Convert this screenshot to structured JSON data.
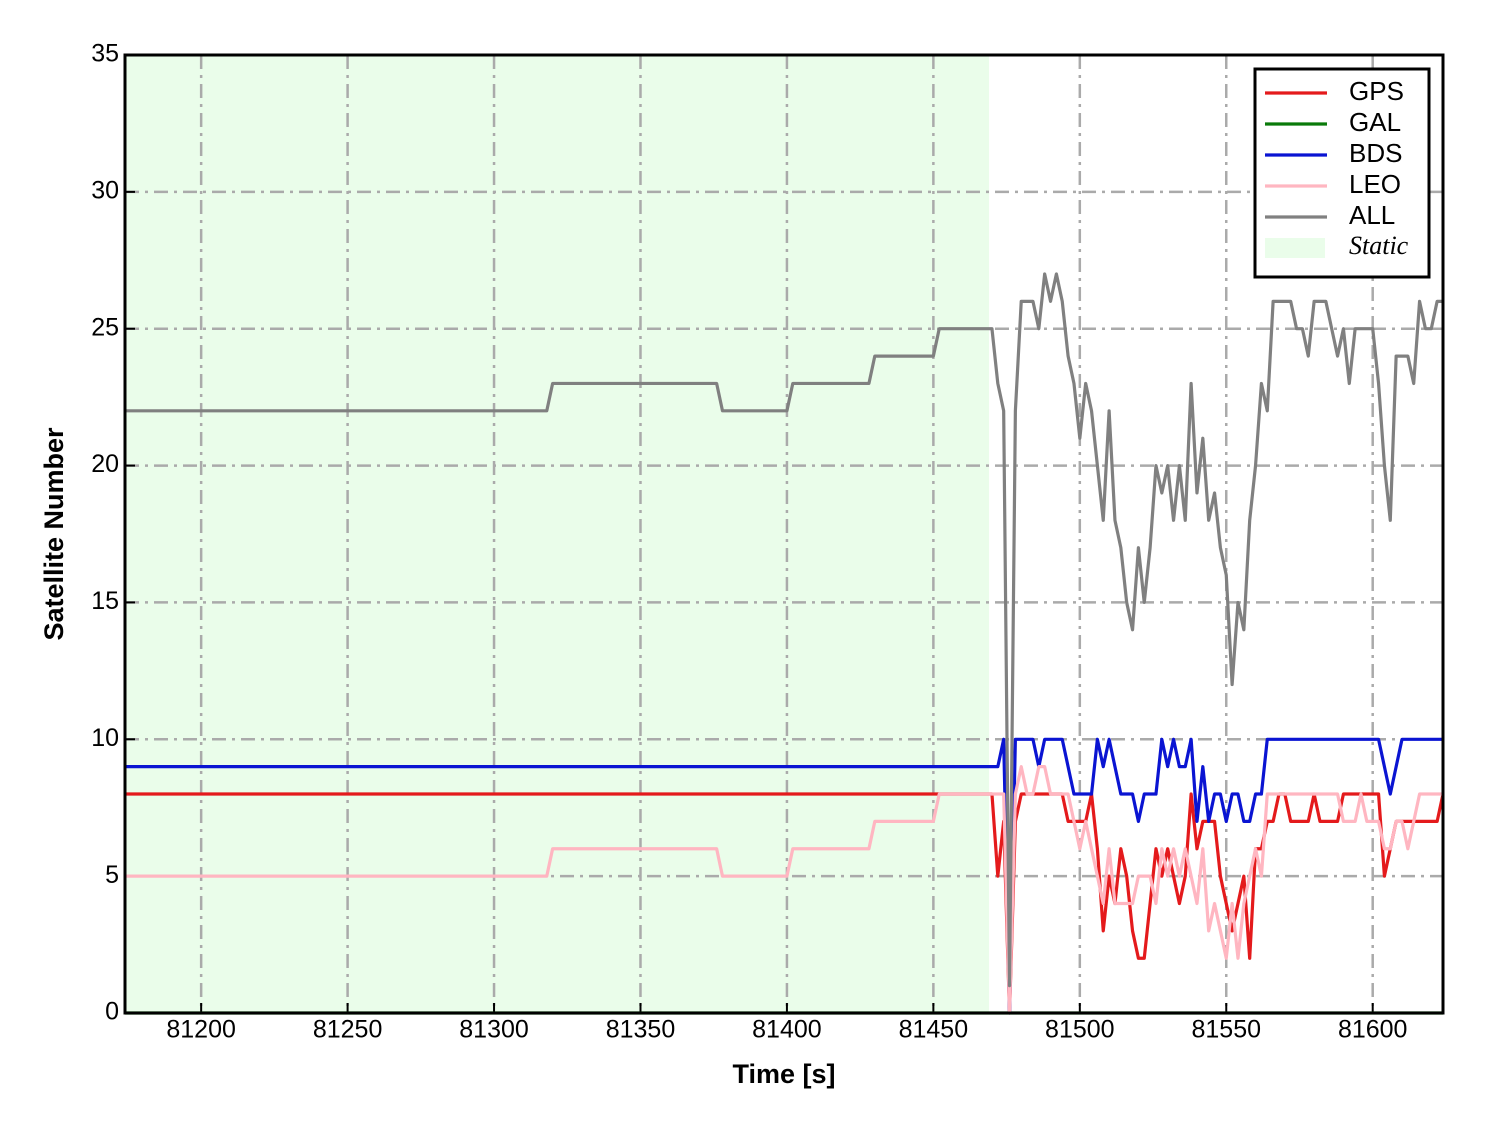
{
  "chart_data": {
    "type": "line",
    "xlabel": "Time [s]",
    "ylabel": "Satellite Number",
    "xlim": [
      81174,
      81624
    ],
    "ylim": [
      0,
      35
    ],
    "xticks": [
      81200,
      81250,
      81300,
      81350,
      81400,
      81450,
      81500,
      81550,
      81600
    ],
    "yticks": [
      0,
      5,
      10,
      15,
      20,
      25,
      30,
      35
    ],
    "grid": true,
    "legend": "upper right",
    "shaded_region": {
      "label": "Static",
      "x": [
        81174,
        81469
      ],
      "color": "#eafdea"
    },
    "x": [
      81174,
      81318,
      81320,
      81376,
      81378,
      81400,
      81402,
      81428,
      81430,
      81450,
      81452,
      81468,
      81470,
      81472,
      81474,
      81476,
      81478,
      81480,
      81482,
      81484,
      81486,
      81488,
      81490,
      81492,
      81494,
      81496,
      81498,
      81500,
      81502,
      81504,
      81506,
      81508,
      81510,
      81512,
      81514,
      81516,
      81518,
      81520,
      81522,
      81524,
      81526,
      81528,
      81530,
      81532,
      81534,
      81536,
      81538,
      81540,
      81542,
      81544,
      81546,
      81548,
      81550,
      81552,
      81554,
      81556,
      81558,
      81560,
      81562,
      81564,
      81566,
      81568,
      81570,
      81572,
      81574,
      81576,
      81578,
      81580,
      81582,
      81584,
      81586,
      81588,
      81590,
      81592,
      81594,
      81596,
      81598,
      81600,
      81602,
      81604,
      81606,
      81608,
      81610,
      81612,
      81614,
      81616,
      81618,
      81620,
      81622,
      81624
    ],
    "series": [
      {
        "name": "GPS",
        "color": "#e41a1c",
        "values": [
          8,
          8,
          8,
          8,
          8,
          8,
          8,
          8,
          8,
          8,
          8,
          8,
          8,
          5,
          7,
          0,
          7,
          8,
          8,
          8,
          8,
          8,
          8,
          8,
          8,
          7,
          7,
          7,
          7,
          8,
          6,
          3,
          5,
          4,
          6,
          5,
          3,
          2,
          2,
          4,
          6,
          5,
          6,
          5,
          4,
          5,
          8,
          6,
          7,
          7,
          7,
          5,
          4,
          3,
          4,
          5,
          2,
          6,
          6,
          7,
          7,
          8,
          8,
          7,
          7,
          7,
          7,
          8,
          7,
          7,
          7,
          7,
          8,
          8,
          8,
          8,
          8,
          8,
          8,
          5,
          6,
          7,
          7,
          7,
          7,
          7,
          7,
          7,
          7,
          8
        ]
      },
      {
        "name": "GAL",
        "color": "#0a7a0a",
        "values": [
          0,
          0,
          0,
          0,
          0,
          0,
          0,
          0,
          0,
          0,
          0,
          0,
          0,
          0,
          0,
          0,
          0,
          0,
          0,
          0,
          0,
          0,
          0,
          0,
          0,
          0,
          0,
          0,
          0,
          0,
          0,
          0,
          0,
          0,
          0,
          0,
          0,
          0,
          0,
          0,
          0,
          0,
          0,
          0,
          0,
          0,
          0,
          0,
          0,
          0,
          0,
          0,
          0,
          0,
          0,
          0,
          0,
          0,
          0,
          0,
          0,
          0,
          0,
          0,
          0,
          0,
          0,
          0,
          0,
          0,
          0,
          0,
          0,
          0,
          0,
          0,
          0,
          0,
          0,
          0,
          0,
          0,
          0,
          0,
          0,
          0,
          0,
          0,
          0,
          0
        ]
      },
      {
        "name": "BDS",
        "color": "#0a14d2",
        "values": [
          9,
          9,
          9,
          9,
          9,
          9,
          9,
          9,
          9,
          9,
          9,
          9,
          9,
          9,
          10,
          0,
          10,
          10,
          10,
          10,
          9,
          10,
          10,
          10,
          10,
          9,
          8,
          8,
          8,
          8,
          10,
          9,
          10,
          9,
          8,
          8,
          8,
          7,
          8,
          8,
          8,
          10,
          9,
          10,
          9,
          9,
          10,
          7,
          9,
          7,
          8,
          8,
          7,
          8,
          8,
          7,
          7,
          8,
          8,
          10,
          10,
          10,
          10,
          10,
          10,
          10,
          10,
          10,
          10,
          10,
          10,
          10,
          10,
          10,
          10,
          10,
          10,
          10,
          10,
          9,
          8,
          9,
          10,
          10,
          10,
          10,
          10,
          10,
          10,
          10
        ]
      },
      {
        "name": "LEO",
        "color": "#ffb6c1",
        "values": [
          5,
          5,
          6,
          6,
          5,
          5,
          6,
          6,
          7,
          7,
          8,
          8,
          8,
          8,
          8,
          0,
          8,
          9,
          8,
          8,
          9,
          9,
          8,
          8,
          8,
          8,
          7,
          6,
          7,
          6,
          5,
          4,
          6,
          4,
          4,
          4,
          4,
          5,
          5,
          5,
          4,
          6,
          5,
          6,
          5,
          6,
          5,
          4,
          6,
          3,
          4,
          3,
          2,
          4,
          2,
          4,
          5,
          6,
          5,
          8,
          8,
          8,
          8,
          8,
          8,
          8,
          8,
          8,
          8,
          8,
          8,
          8,
          7,
          7,
          7,
          8,
          7,
          7,
          7,
          6,
          6,
          7,
          7,
          6,
          7,
          8,
          8,
          8,
          8,
          8
        ]
      },
      {
        "name": "ALL",
        "color": "#808080",
        "values": [
          22,
          22,
          23,
          23,
          22,
          22,
          23,
          23,
          24,
          24,
          25,
          25,
          25,
          23,
          22,
          1,
          22,
          26,
          26,
          26,
          25,
          27,
          26,
          27,
          26,
          24,
          23,
          21,
          23,
          22,
          20,
          18,
          22,
          18,
          17,
          15,
          14,
          17,
          15,
          17,
          20,
          19,
          20,
          18,
          20,
          18,
          23,
          19,
          21,
          18,
          19,
          17,
          16,
          12,
          15,
          14,
          18,
          20,
          23,
          22,
          26,
          26,
          26,
          26,
          25,
          25,
          24,
          26,
          26,
          26,
          25,
          24,
          25,
          23,
          25,
          25,
          25,
          25,
          23,
          20,
          18,
          24,
          24,
          24,
          23,
          26,
          25,
          25,
          26,
          26
        ]
      }
    ]
  }
}
